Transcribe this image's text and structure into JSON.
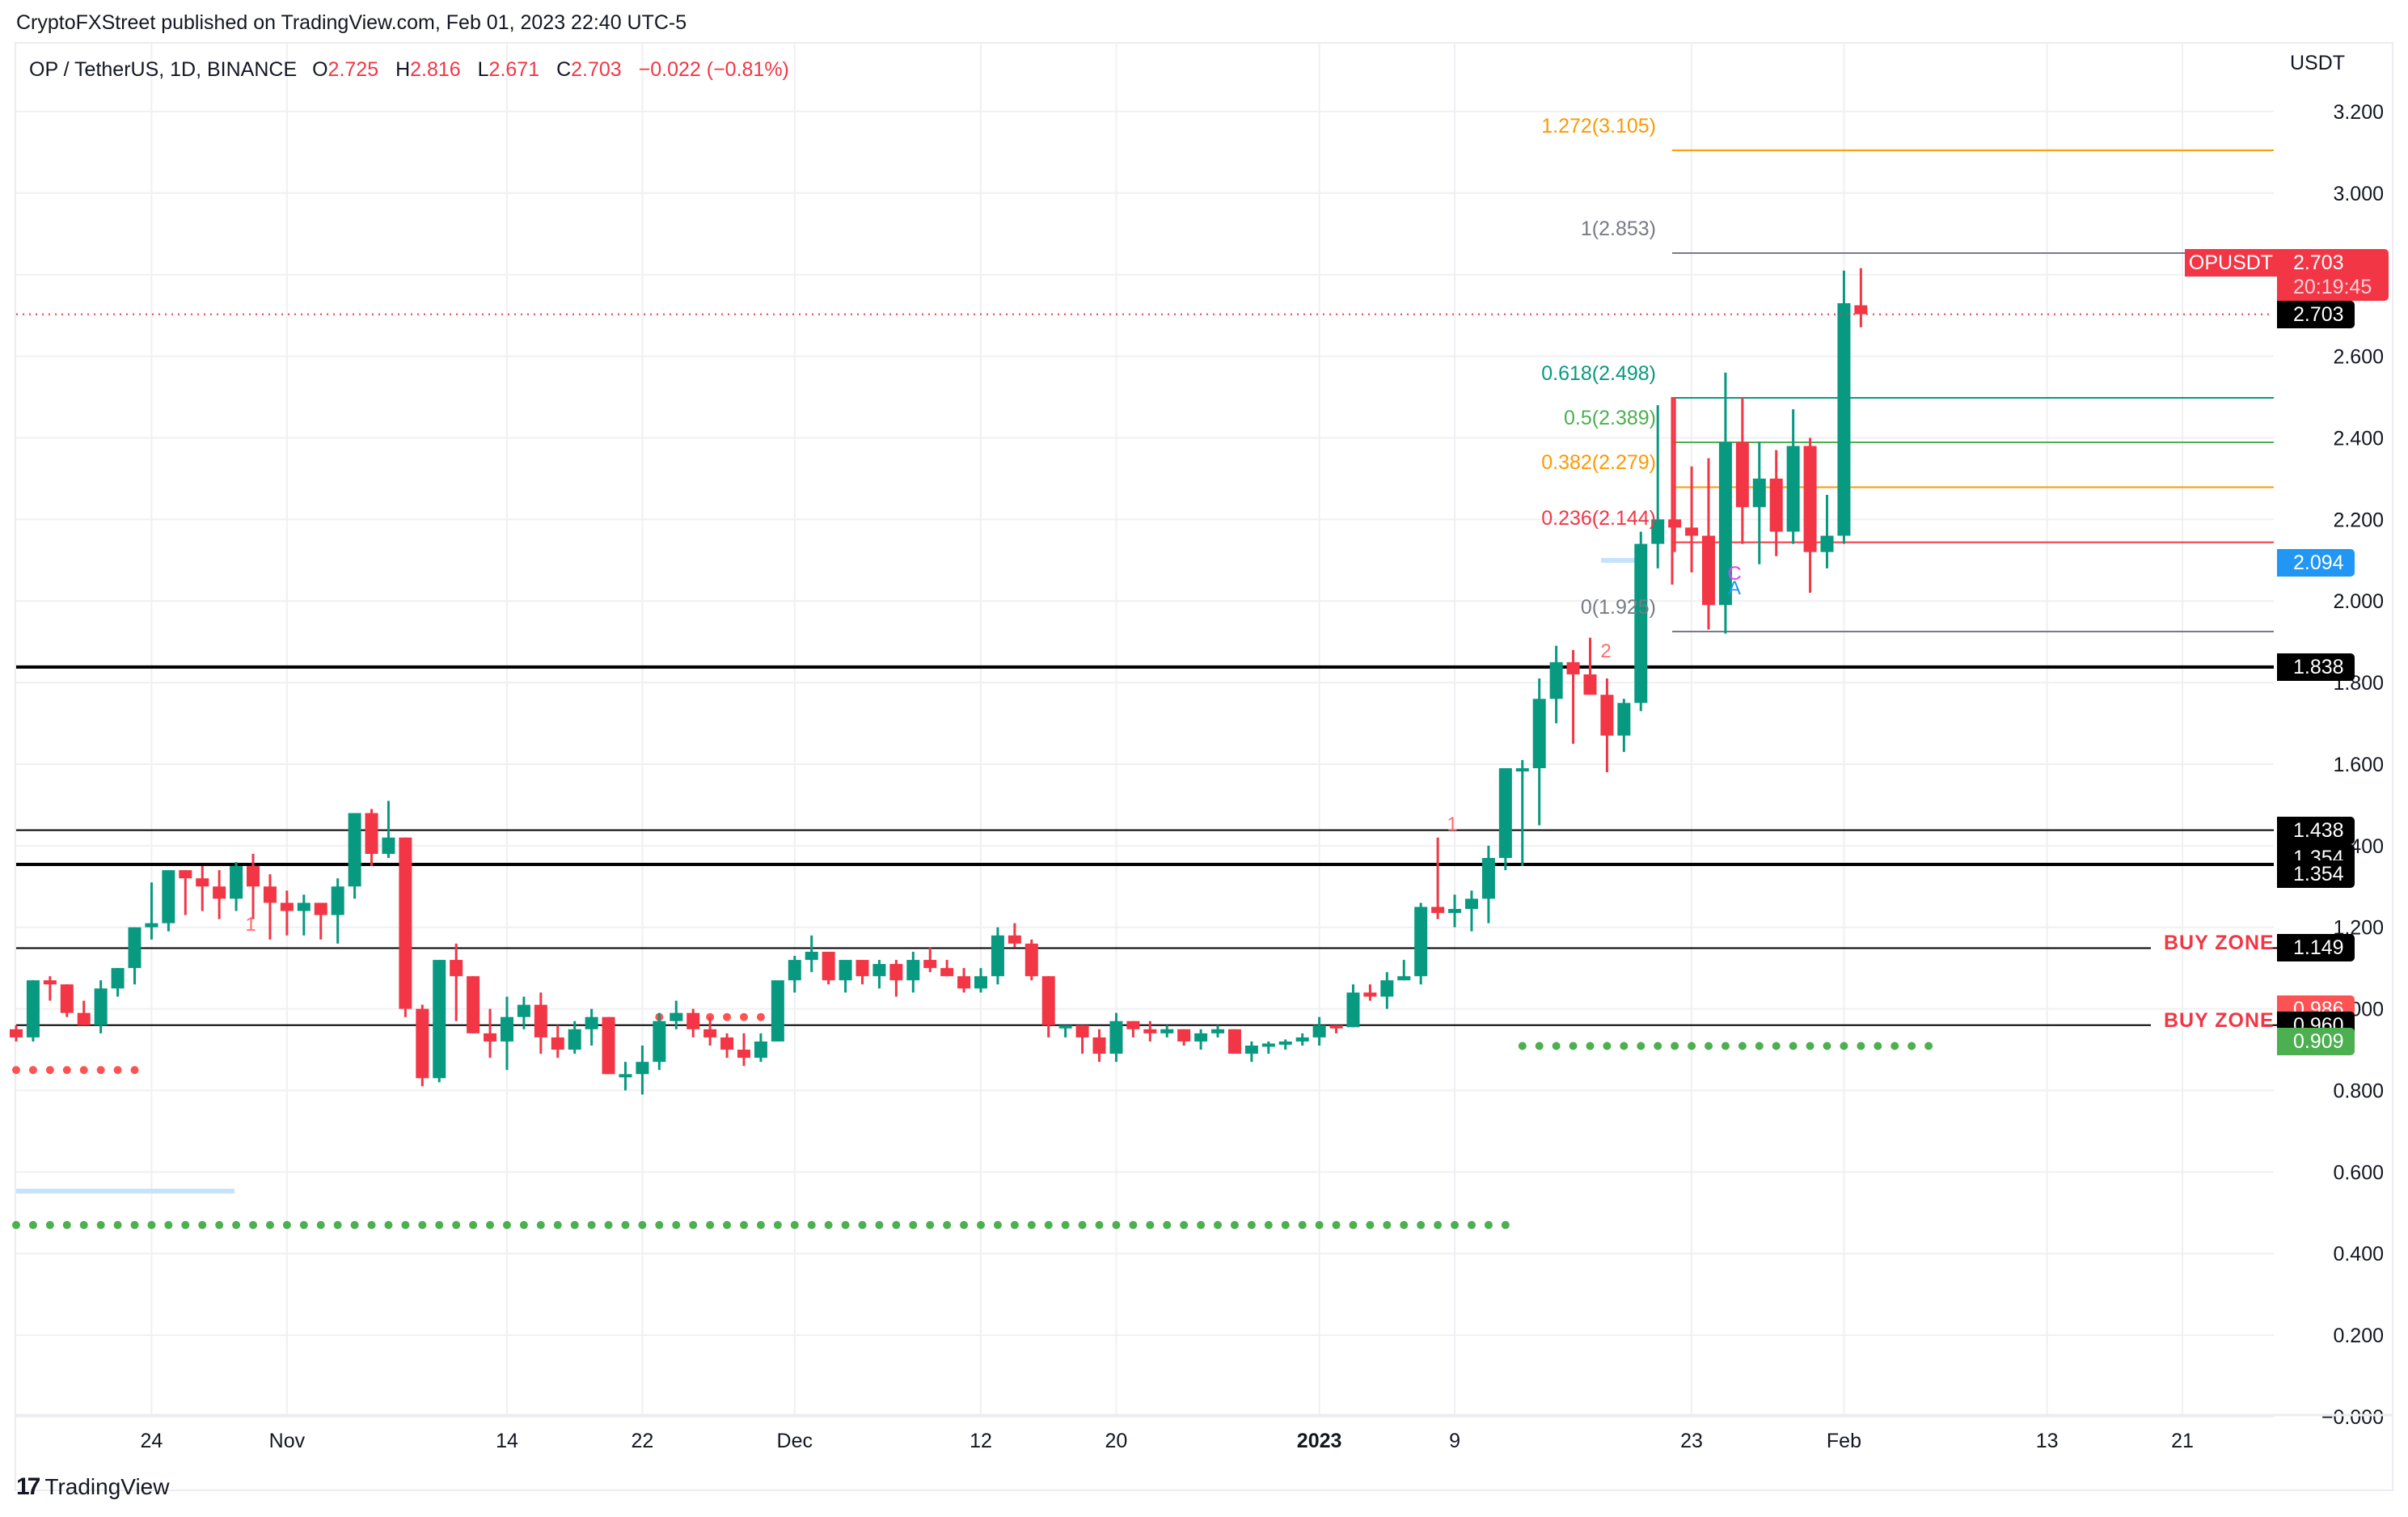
{
  "header": {
    "publisher_line": "CryptoFXStreet published on TradingView.com, Feb 01, 2023 22:40 UTC-5"
  },
  "legend": {
    "symbol": "OP / TetherUS, 1D, BINANCE",
    "open_label": "O",
    "open": "2.725",
    "high_label": "H",
    "high": "2.816",
    "low_label": "L",
    "low": "2.671",
    "close_label": "C",
    "close": "2.703",
    "change": "−0.022 (−0.81%)"
  },
  "price_axis": {
    "currency": "USDT",
    "ticks": [
      "3.200",
      "3.000",
      "2.800",
      "2.600",
      "2.400",
      "2.200",
      "2.000",
      "1.800",
      "1.600",
      "1.400",
      "1.200",
      "1.000",
      "0.800",
      "0.600",
      "0.400",
      "0.200",
      "−0.000"
    ],
    "tick_values": [
      3.2,
      3.0,
      2.8,
      2.6,
      2.4,
      2.2,
      2.0,
      1.8,
      1.6,
      1.4,
      1.2,
      1.0,
      0.8,
      0.6,
      0.4,
      0.2,
      0.0
    ]
  },
  "time_axis": {
    "labels": [
      {
        "text": "24",
        "index": 8,
        "bold": false
      },
      {
        "text": "Nov",
        "index": 16,
        "bold": false
      },
      {
        "text": "14",
        "index": 29,
        "bold": false
      },
      {
        "text": "22",
        "index": 37,
        "bold": false
      },
      {
        "text": "Dec",
        "index": 46,
        "bold": false
      },
      {
        "text": "12",
        "index": 57,
        "bold": false
      },
      {
        "text": "20",
        "index": 65,
        "bold": false
      },
      {
        "text": "2023",
        "index": 77,
        "bold": true
      },
      {
        "text": "9",
        "index": 85,
        "bold": false
      },
      {
        "text": "23",
        "index": 99,
        "bold": false
      },
      {
        "text": "Feb",
        "index": 108,
        "bold": false
      },
      {
        "text": "13",
        "index": 120,
        "bold": false
      },
      {
        "text": "21",
        "index": 128,
        "bold": false
      }
    ]
  },
  "price_tags": [
    {
      "label": "2.703",
      "price": 2.703,
      "bg": "#000000",
      "color": "#ffffff"
    },
    {
      "label": "2.094",
      "price": 2.094,
      "bg": "#2196f3",
      "color": "#ffffff"
    },
    {
      "label": "1.838",
      "price": 1.838,
      "bg": "#000000",
      "color": "#ffffff"
    },
    {
      "label": "1.438",
      "price": 1.438,
      "bg": "#000000",
      "color": "#ffffff"
    },
    {
      "label": "1.354",
      "price": 1.37,
      "bg": "#000000",
      "color": "#ffffff"
    },
    {
      "label": "1.354",
      "price": 1.33,
      "bg": "#000000",
      "color": "#ffffff"
    },
    {
      "label": "1.149",
      "price": 1.149,
      "bg": "#000000",
      "color": "#ffffff"
    },
    {
      "label": "0.986",
      "price": 1.0,
      "bg": "#ff5252",
      "color": "#ffffff"
    },
    {
      "label": "0.960",
      "price": 0.96,
      "bg": "#000000",
      "color": "#ffffff"
    },
    {
      "label": "0.909",
      "price": 0.92,
      "bg": "#4caf50",
      "color": "#ffffff"
    }
  ],
  "live_price": {
    "symbol": "OPUSDT",
    "price": "2.703",
    "countdown": "20:19:45"
  },
  "annotations": {
    "buy_zone_1": "BUY ZONE",
    "buy_zone_2": "BUY ZONE",
    "marker_1a": "1",
    "marker_1b": "1",
    "marker_2": "2",
    "wave_c": "C",
    "wave_a": "A"
  },
  "fibonacci": [
    {
      "label": "1.272(3.105)",
      "price": 3.105,
      "color": "#ff9800"
    },
    {
      "label": "1(2.853)",
      "price": 2.853,
      "color": "#787b86"
    },
    {
      "label": "0.618(2.498)",
      "price": 2.498,
      "color": "#089981"
    },
    {
      "label": "0.5(2.389)",
      "price": 2.389,
      "color": "#4caf50"
    },
    {
      "label": "0.382(2.279)",
      "price": 2.279,
      "color": "#ff9800"
    },
    {
      "label": "0.236(2.144)",
      "price": 2.144,
      "color": "#f23645"
    },
    {
      "label": "0(1.925)",
      "price": 1.925,
      "color": "#787b86"
    }
  ],
  "colors": {
    "up": "#089981",
    "down": "#f23645",
    "grid": "#f0f0f3",
    "fib_orange": "#ff9800",
    "dots_red": "#ff5252",
    "dots_green": "#4caf50",
    "highlight_blue": "#c7e3fb"
  },
  "branding": {
    "logo_mark": "17",
    "logo_text": "TradingView"
  },
  "chart_data": {
    "type": "candlestick",
    "title": "OP / TetherUS, 1D, BINANCE",
    "xlabel": "",
    "ylabel": "USDT",
    "ylim": [
      0.0,
      3.3
    ],
    "grid": true,
    "start_date": "2022-10-16",
    "horizontal_levels": [
      {
        "price": 1.838,
        "width": 4
      },
      {
        "price": 1.438,
        "width": 2
      },
      {
        "price": 1.354,
        "width": 4
      },
      {
        "price": 1.149,
        "width": 2,
        "label": "BUY ZONE"
      },
      {
        "price": 0.96,
        "width": 2,
        "label": "BUY ZONE"
      }
    ],
    "candles": [
      [
        0.95,
        0.96,
        0.92,
        0.93
      ],
      [
        0.93,
        1.07,
        0.92,
        1.07
      ],
      [
        1.07,
        1.08,
        1.02,
        1.06
      ],
      [
        1.06,
        1.06,
        0.98,
        0.99
      ],
      [
        0.99,
        1.02,
        0.96,
        0.96
      ],
      [
        0.96,
        1.07,
        0.94,
        1.05
      ],
      [
        1.05,
        1.1,
        1.03,
        1.1
      ],
      [
        1.1,
        1.2,
        1.06,
        1.2
      ],
      [
        1.2,
        1.31,
        1.17,
        1.21
      ],
      [
        1.21,
        1.25,
        1.19,
        1.34
      ],
      [
        1.34,
        1.34,
        1.23,
        1.32
      ],
      [
        1.32,
        1.35,
        1.24,
        1.3
      ],
      [
        1.3,
        1.34,
        1.22,
        1.27
      ],
      [
        1.27,
        1.36,
        1.24,
        1.35
      ],
      [
        1.35,
        1.38,
        1.22,
        1.3
      ],
      [
        1.3,
        1.33,
        1.17,
        1.26
      ],
      [
        1.26,
        1.29,
        1.18,
        1.24
      ],
      [
        1.24,
        1.28,
        1.18,
        1.26
      ],
      [
        1.26,
        1.26,
        1.17,
        1.23
      ],
      [
        1.23,
        1.32,
        1.16,
        1.3
      ],
      [
        1.3,
        1.45,
        1.27,
        1.48
      ],
      [
        1.48,
        1.49,
        1.35,
        1.38
      ],
      [
        1.38,
        1.51,
        1.37,
        1.42
      ],
      [
        1.42,
        1.42,
        0.98,
        1.0
      ],
      [
        1.0,
        1.01,
        0.81,
        0.83
      ],
      [
        0.83,
        1.12,
        0.82,
        1.12
      ],
      [
        1.12,
        1.16,
        0.97,
        1.08
      ],
      [
        1.08,
        1.08,
        0.94,
        0.94
      ],
      [
        0.94,
        1.0,
        0.88,
        0.92
      ],
      [
        0.92,
        1.03,
        0.85,
        0.98
      ],
      [
        0.98,
        1.03,
        0.95,
        1.01
      ],
      [
        1.01,
        1.04,
        0.89,
        0.93
      ],
      [
        0.93,
        0.96,
        0.88,
        0.9
      ],
      [
        0.9,
        0.97,
        0.89,
        0.95
      ],
      [
        0.95,
        1.0,
        0.91,
        0.98
      ],
      [
        0.98,
        0.98,
        0.84,
        0.84
      ],
      [
        0.84,
        0.87,
        0.8,
        0.84
      ],
      [
        0.84,
        0.91,
        0.79,
        0.87
      ],
      [
        0.87,
        0.99,
        0.85,
        0.97
      ],
      [
        0.97,
        1.02,
        0.95,
        0.99
      ],
      [
        0.99,
        1.0,
        0.93,
        0.95
      ],
      [
        0.95,
        0.98,
        0.91,
        0.93
      ],
      [
        0.93,
        0.94,
        0.88,
        0.9
      ],
      [
        0.9,
        0.94,
        0.86,
        0.88
      ],
      [
        0.88,
        0.94,
        0.87,
        0.92
      ],
      [
        0.92,
        1.06,
        0.92,
        1.07
      ],
      [
        1.07,
        1.13,
        1.04,
        1.12
      ],
      [
        1.12,
        1.18,
        1.09,
        1.14
      ],
      [
        1.14,
        1.14,
        1.06,
        1.07
      ],
      [
        1.07,
        1.12,
        1.04,
        1.12
      ],
      [
        1.12,
        1.12,
        1.06,
        1.08
      ],
      [
        1.08,
        1.12,
        1.05,
        1.11
      ],
      [
        1.11,
        1.12,
        1.03,
        1.07
      ],
      [
        1.07,
        1.14,
        1.04,
        1.12
      ],
      [
        1.12,
        1.15,
        1.09,
        1.1
      ],
      [
        1.1,
        1.12,
        1.08,
        1.08
      ],
      [
        1.08,
        1.1,
        1.04,
        1.05
      ],
      [
        1.05,
        1.1,
        1.04,
        1.08
      ],
      [
        1.08,
        1.2,
        1.06,
        1.18
      ],
      [
        1.18,
        1.21,
        1.15,
        1.16
      ],
      [
        1.16,
        1.17,
        1.07,
        1.08
      ],
      [
        1.08,
        1.08,
        0.93,
        0.96
      ],
      [
        0.96,
        0.96,
        0.93,
        0.96
      ],
      [
        0.96,
        0.96,
        0.89,
        0.93
      ],
      [
        0.93,
        0.95,
        0.87,
        0.89
      ],
      [
        0.89,
        0.99,
        0.87,
        0.97
      ],
      [
        0.97,
        0.97,
        0.93,
        0.95
      ],
      [
        0.95,
        0.97,
        0.92,
        0.94
      ],
      [
        0.94,
        0.96,
        0.93,
        0.95
      ],
      [
        0.95,
        0.95,
        0.91,
        0.92
      ],
      [
        0.92,
        0.95,
        0.9,
        0.94
      ],
      [
        0.94,
        0.96,
        0.93,
        0.95
      ],
      [
        0.95,
        0.95,
        0.89,
        0.89
      ],
      [
        0.89,
        0.92,
        0.87,
        0.91
      ],
      [
        0.91,
        0.92,
        0.89,
        0.915
      ],
      [
        0.915,
        0.925,
        0.9,
        0.92
      ],
      [
        0.92,
        0.94,
        0.91,
        0.93
      ],
      [
        0.93,
        0.98,
        0.91,
        0.96
      ],
      [
        0.96,
        0.96,
        0.94,
        0.955
      ],
      [
        0.955,
        1.06,
        0.955,
        1.04
      ],
      [
        1.04,
        1.06,
        1.02,
        1.03
      ],
      [
        1.03,
        1.09,
        1.0,
        1.07
      ],
      [
        1.07,
        1.12,
        1.07,
        1.08
      ],
      [
        1.08,
        1.26,
        1.06,
        1.25
      ],
      [
        1.25,
        1.42,
        1.22,
        1.235
      ],
      [
        1.235,
        1.28,
        1.2,
        1.245
      ],
      [
        1.245,
        1.29,
        1.19,
        1.27
      ],
      [
        1.27,
        1.4,
        1.21,
        1.37
      ],
      [
        1.37,
        1.48,
        1.34,
        1.59
      ],
      [
        1.59,
        1.61,
        1.35,
        1.59
      ],
      [
        1.59,
        1.81,
        1.45,
        1.76
      ],
      [
        1.76,
        1.89,
        1.7,
        1.85
      ],
      [
        1.85,
        1.88,
        1.65,
        1.82
      ],
      [
        1.82,
        1.91,
        1.8,
        1.77
      ],
      [
        1.77,
        1.81,
        1.58,
        1.67
      ],
      [
        1.67,
        1.76,
        1.63,
        1.75
      ],
      [
        1.75,
        2.17,
        1.73,
        2.14
      ],
      [
        2.14,
        2.48,
        2.08,
        2.2
      ],
      [
        2.2,
        2.5,
        2.12,
        2.18
      ],
      [
        2.18,
        2.33,
        2.07,
        2.16
      ],
      [
        2.16,
        2.35,
        1.93,
        1.99
      ],
      [
        1.99,
        2.56,
        1.92,
        2.39
      ],
      [
        2.39,
        2.5,
        2.14,
        2.23
      ],
      [
        2.23,
        2.39,
        2.09,
        2.3
      ],
      [
        2.3,
        2.37,
        2.11,
        2.17
      ],
      [
        2.17,
        2.47,
        2.14,
        2.38
      ],
      [
        2.38,
        2.4,
        2.02,
        2.12
      ],
      [
        2.12,
        2.26,
        2.08,
        2.16
      ],
      [
        2.16,
        2.81,
        2.14,
        2.73
      ],
      [
        2.725,
        2.816,
        2.671,
        2.703
      ]
    ],
    "candle_format": [
      "open",
      "high",
      "low",
      "close"
    ]
  }
}
